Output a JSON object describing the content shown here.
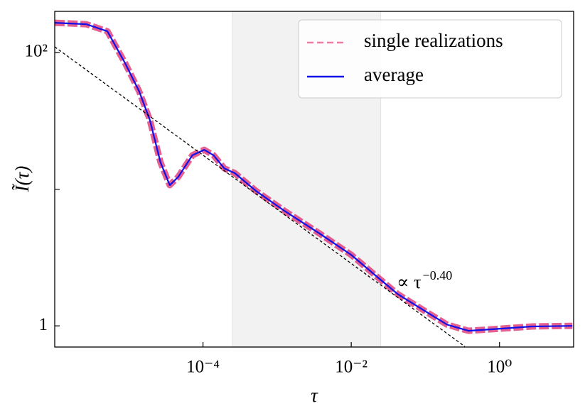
{
  "chart_data": {
    "type": "line",
    "x_label": "τ",
    "y_label": "Ĩ(τ)",
    "xlog": true,
    "ylog": true,
    "xlim": [
      1e-06,
      10
    ],
    "ylim": [
      0.7,
      200
    ],
    "xticks": [
      {
        "value": 0.0001,
        "label": "10⁻⁴"
      },
      {
        "value": 0.01,
        "label": "10⁻²"
      },
      {
        "value": 1,
        "label": "10⁰"
      }
    ],
    "yticks": [
      1,
      {
        "value": 100,
        "label": "10²"
      }
    ],
    "y_unlabeled_ticks": [
      10
    ],
    "shaded_span": [
      0.00025,
      0.025
    ],
    "fit_line": {
      "x": [
        1e-06,
        0.34
      ],
      "y": [
        110,
        0.707
      ],
      "color": "#000000"
    },
    "annotation": {
      "text": "∝ τ",
      "exponent": "−0.40"
    },
    "legend": "upper right",
    "x": [
      1e-06,
      2.66e-06,
      5.14e-06,
      8.9e-06,
      1.38e-05,
      1.92e-05,
      2.67e-05,
      3.56e-05,
      4.63e-05,
      7.19e-05,
      0.000104,
      0.000139,
      0.000193,
      0.000269,
      0.00052,
      0.00125,
      0.00376,
      0.01,
      0.0218,
      0.0422,
      0.102,
      0.197,
      0.38,
      0.916,
      2.75,
      9.6
    ],
    "series": [
      {
        "name": "single realizations",
        "color": "#dc2a6c",
        "style": "dashed",
        "values": [
          165,
          161,
          143,
          83.6,
          51.8,
          32.1,
          15.7,
          10.7,
          12.3,
          17.7,
          19.4,
          17.7,
          14.2,
          13.1,
          9.7,
          6.95,
          4.73,
          3.31,
          2.31,
          1.71,
          1.27,
          1.02,
          0.92,
          0.95,
          0.99,
          1.0
        ]
      },
      {
        "name": "average",
        "color": "#1010e8",
        "style": "solid",
        "values": [
          165,
          161,
          143,
          83.6,
          51.8,
          32.1,
          15.7,
          10.7,
          12.3,
          17.7,
          19.4,
          17.7,
          14.2,
          13.1,
          9.7,
          6.95,
          4.73,
          3.31,
          2.31,
          1.71,
          1.27,
          1.02,
          0.92,
          0.95,
          0.99,
          1.0
        ]
      }
    ]
  }
}
